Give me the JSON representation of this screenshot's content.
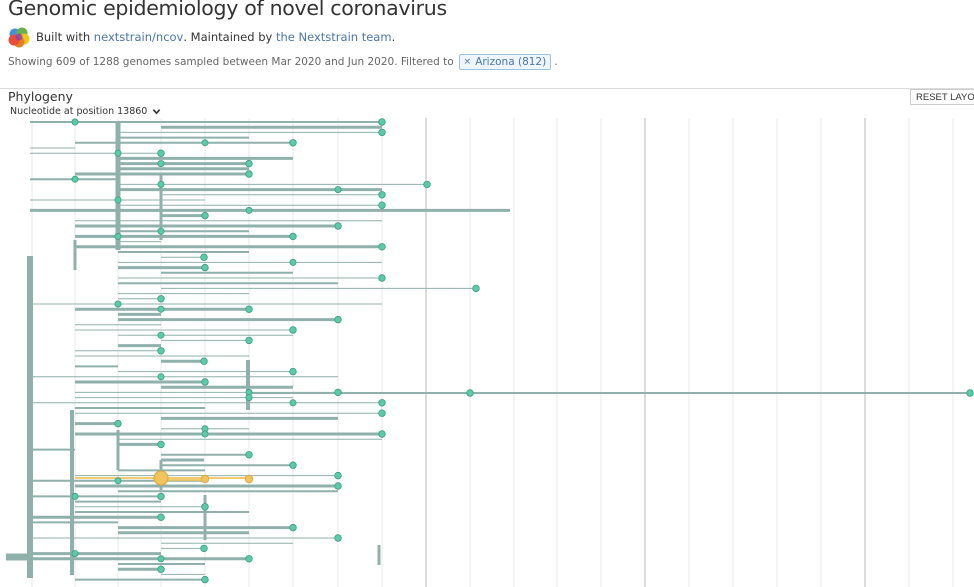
{
  "header": {
    "title": "Genomic epidemiology of novel coronavirus",
    "built_with_prefix": "Built with",
    "built_with_link": "nextstrain/ncov",
    "maintained_prefix": ". Maintained by",
    "maintained_link": "the Nextstrain team",
    "maintained_suffix": ".",
    "logo_colors": [
      "#4a90d9",
      "#6ab04c",
      "#f0c419",
      "#e67e22",
      "#e74c3c",
      "#8e44ad"
    ]
  },
  "summary": {
    "text": "Showing 609 of 1288 genomes sampled between Mar 2020 and Jun 2020. Filtered to",
    "filter_label": "Arizona (812)",
    "filter_remove_symbol": "×",
    "suffix": "."
  },
  "panel": {
    "title": "Phylogeny",
    "color_by": "Nucleotide at position 13860",
    "reset_label": "RESET LAYOUT"
  },
  "tree": {
    "colors": {
      "branch": "#8fb0ab",
      "tip": "#5cc9a7",
      "tip_stroke": "#3a9e84",
      "highlight": "#f1c35b",
      "highlight_stroke": "#d9a53a",
      "grid": "#e8e8e8",
      "grid_major": "#d4d4d4"
    }
  }
}
